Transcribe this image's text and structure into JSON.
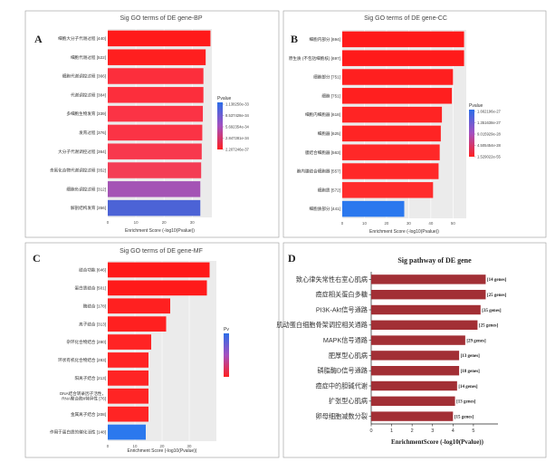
{
  "chart_data": [
    {
      "id": "bp",
      "panel_label": "A",
      "type": "bar",
      "orientation": "horizontal",
      "title": "Sig GO terms of DE gene-BP",
      "xlabel": "Enrichment Score (-log10(Pvalue))",
      "xlim": [
        0,
        37
      ],
      "xticks": [
        0,
        10,
        20,
        30
      ],
      "legend_title": "Pvalue",
      "legend_labels": [
        "1.138250e-33",
        "8.537428e-34",
        "5.692354e-34",
        "2.847281e-34",
        "2.207246e-37"
      ],
      "gradient": [
        "#2b6de8",
        "#ff2020"
      ],
      "categories": [
        "细胞大分子代谢过程 [440]",
        "细胞代谢过程 [522]",
        "细胞代谢调控过程 [366]",
        "代谢调控过程 [384]",
        "多细胞生物发育 [339]",
        "发育过程 [376]",
        "大分子代谢调控过程 [364]",
        "含氮化合物代谢调控过程 [352]",
        "细胞负调控过程 [312]",
        "解剖结构发育 [356]"
      ],
      "values": [
        36.5,
        34.8,
        34.0,
        34.0,
        33.8,
        33.6,
        33.4,
        33.2,
        32.9,
        32.9
      ],
      "colors": [
        "#ff1a1a",
        "#ff1f1f",
        "#fc2e3c",
        "#fc2e3c",
        "#fb3345",
        "#fb3345",
        "#f8384d",
        "#f43d55",
        "#a454b5",
        "#4c63d6"
      ]
    },
    {
      "id": "cc",
      "panel_label": "B",
      "type": "bar",
      "orientation": "horizontal",
      "title": "Sig GO terms of DE gene-CC",
      "xlabel": "Enrichment Score (-log10(Pvalue))",
      "xlim": [
        0,
        56
      ],
      "xticks": [
        0,
        10,
        20,
        30,
        40,
        50
      ],
      "legend_title": "Pvalue",
      "legend_labels": [
        "1.662196e-27",
        "1.351638e-27",
        "9.015929e-28",
        "4.505454e-28",
        "1.529022e-55"
      ],
      "gradient": [
        "#2b6de8",
        "#ff2020"
      ],
      "categories": [
        "细胞内部分 [694]",
        "原生质 (不包括细胞核) [697]",
        "细胞部分 [751]",
        "细胞 [751]",
        "细胞内细胞器 [618]",
        "细胞器 [625]",
        "膜结合细胞器 [563]",
        "胞内膜结合细胞器 [557]",
        "细胞质 [572]",
        "细胞质部分 [441]"
      ],
      "values": [
        55.0,
        55.0,
        50.0,
        49.5,
        45.0,
        44.5,
        44.0,
        43.5,
        41.0,
        28.0
      ],
      "colors": [
        "#ff1a1a",
        "#ff1a1a",
        "#ff1f1f",
        "#ff1f1f",
        "#ff2424",
        "#ff2424",
        "#ff2828",
        "#ff2828",
        "#ff2c2c",
        "#2b78ee"
      ]
    },
    {
      "id": "mf",
      "panel_label": "C",
      "type": "bar",
      "orientation": "horizontal",
      "title": "Sig GO terms of DE gene-MF",
      "xlabel": "Enrichment Score (-log10(Pvalue))",
      "xlim": [
        0,
        40
      ],
      "xticks": [
        0,
        10,
        20,
        30
      ],
      "legend_title": "Pv",
      "legend_labels": [],
      "gradient": [
        "#2b6de8",
        "#ff2020"
      ],
      "categories": [
        "结合功能 [646]",
        "蛋白质结合 [501]",
        "酶结合 [178]",
        "离子结合 [313]",
        "杂环化合物结合 [280]",
        "环状有机化合物结合 [283]",
        "阳离子结合 [213]",
        "DNA结合转录因子活性，RNA聚合酶II特异性 [76]",
        "金属离子结合 [208]",
        "作用于蛋白质的催化活性 [148]"
      ],
      "values": [
        37.5,
        36.5,
        23.0,
        21.5,
        16.0,
        15.0,
        15.0,
        15.0,
        15.0,
        14.0
      ],
      "colors": [
        "#ff1a1a",
        "#ff1a1a",
        "#ff2020",
        "#ff2020",
        "#ff2424",
        "#ff2424",
        "#ff2424",
        "#ff2424",
        "#ff2424",
        "#2b78ee"
      ]
    },
    {
      "id": "kegg",
      "panel_label": "D",
      "type": "bar",
      "orientation": "horizontal",
      "title": "Sig pathway of DE gene",
      "xlabel": "EnrichmentScore (-log10(Pvalue))",
      "xlim": [
        0,
        6.2
      ],
      "xticks": [
        0,
        1,
        2,
        3,
        4,
        5
      ],
      "bar_color": "#a22f35",
      "categories": [
        "致心律失常性右室心肌病",
        "癌症相关蛋白多糖",
        "PI3K-Akt信号通路",
        "肌动蛋白细胞骨架调控相关通路",
        "MAPK信号通路",
        "肥厚型心肌病",
        "磷脂酶D信号通路",
        "癌症中的胆碱代谢",
        "扩张型心肌病",
        "卵母细胞减数分裂"
      ],
      "values": [
        5.6,
        5.6,
        5.35,
        5.2,
        4.6,
        4.3,
        4.3,
        4.2,
        4.1,
        4.0
      ],
      "gene_labels": [
        "[14 genes]",
        "[25 genes]",
        "[35 genes]",
        "[25 genes]",
        "[29 genes]",
        "[13 genes]",
        "[18 genes]",
        "[14 genes]",
        "[13 genes]",
        "[15 genes]"
      ]
    }
  ]
}
